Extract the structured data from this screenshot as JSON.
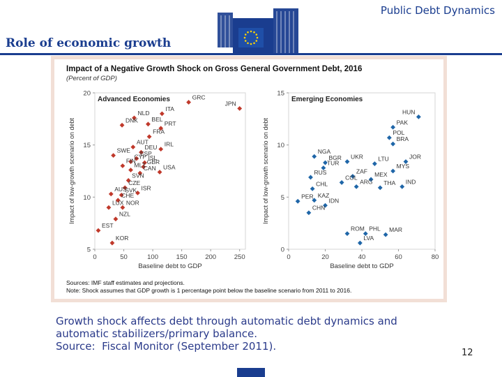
{
  "header": {
    "section_title": "Public Debt Dynamics"
  },
  "slide": {
    "title": "Role of economic growth",
    "page_number": "12"
  },
  "colors": {
    "brand_blue": "#1a3d8f",
    "advanced": "#c0392b",
    "emerging": "#1f66a8",
    "frame": "#f2dfd6"
  },
  "caption": {
    "line1": "Growth shock affects debt through automatic debt dynamics and",
    "line2": "automatic stabilizers/primary balance.",
    "line3": "Source:  Fiscal Monitor (September 2011)."
  },
  "chart_data": [
    {
      "type": "scatter",
      "title": "Impact of a Negative Growth Shock on Gross General Government Debt, 2016",
      "subtitle": "(Percent of GDP)",
      "panel_title": "Advanced Economies",
      "xlabel": "Baseline debt to GDP",
      "ylabel": "Impact of low-growth scenario on debt",
      "xlim": [
        0,
        260
      ],
      "ylim": [
        5,
        20
      ],
      "xticks": [
        "0",
        "50",
        "100",
        "150",
        "200",
        "250"
      ],
      "yticks": [
        "5",
        "10",
        "15",
        "20"
      ],
      "points": [
        {
          "label": "GRC",
          "x": 162,
          "y": 19.1
        },
        {
          "label": "JPN",
          "x": 250,
          "y": 18.5
        },
        {
          "label": "ITA",
          "x": 116,
          "y": 18.0
        },
        {
          "label": "NLD",
          "x": 68,
          "y": 17.6
        },
        {
          "label": "BEL",
          "x": 92,
          "y": 17.0
        },
        {
          "label": "DNK",
          "x": 47,
          "y": 16.9
        },
        {
          "label": "PRT",
          "x": 114,
          "y": 16.6
        },
        {
          "label": "FRA",
          "x": 94,
          "y": 15.8
        },
        {
          "label": "AUT",
          "x": 66,
          "y": 14.8
        },
        {
          "label": "DEU",
          "x": 80,
          "y": 14.3
        },
        {
          "label": "IRL",
          "x": 114,
          "y": 14.6
        },
        {
          "label": "SWE",
          "x": 32,
          "y": 14.0
        },
        {
          "label": "ESP",
          "x": 72,
          "y": 13.7
        },
        {
          "label": "CYP",
          "x": 62,
          "y": 13.4
        },
        {
          "label": "ISL",
          "x": 86,
          "y": 13.3
        },
        {
          "label": "FIN",
          "x": 48,
          "y": 13.0
        },
        {
          "label": "GBR",
          "x": 84,
          "y": 12.9
        },
        {
          "label": "MLT",
          "x": 62,
          "y": 12.6
        },
        {
          "label": "CAN",
          "x": 78,
          "y": 12.3
        },
        {
          "label": "USA",
          "x": 112,
          "y": 12.4
        },
        {
          "label": "SVN",
          "x": 58,
          "y": 11.6
        },
        {
          "label": "CZE",
          "x": 52,
          "y": 10.9
        },
        {
          "label": "ISR",
          "x": 74,
          "y": 10.4
        },
        {
          "label": "AUS",
          "x": 28,
          "y": 10.3
        },
        {
          "label": "SVK",
          "x": 46,
          "y": 10.2
        },
        {
          "label": "CHE",
          "x": 40,
          "y": 9.7
        },
        {
          "label": "LUX",
          "x": 24,
          "y": 9.0
        },
        {
          "label": "NOR",
          "x": 48,
          "y": 9.0
        },
        {
          "label": "NZL",
          "x": 36,
          "y": 7.9
        },
        {
          "label": "EST",
          "x": 6,
          "y": 6.8
        },
        {
          "label": "KOR",
          "x": 30,
          "y": 5.6
        }
      ]
    },
    {
      "type": "scatter",
      "panel_title": "Emerging Economies",
      "xlabel": "Baseline debt to GDP",
      "ylabel": "Impact of low-growth scenario on debt",
      "xlim": [
        0,
        80
      ],
      "ylim": [
        0,
        15
      ],
      "xticks": [
        "0",
        "20",
        "40",
        "60",
        "80"
      ],
      "yticks": [
        "0",
        "5",
        "10",
        "15"
      ],
      "points": [
        {
          "label": "HUN",
          "x": 71,
          "y": 12.7
        },
        {
          "label": "PAK",
          "x": 57,
          "y": 11.7
        },
        {
          "label": "POL",
          "x": 55,
          "y": 10.7
        },
        {
          "label": "BRA",
          "x": 57,
          "y": 10.1
        },
        {
          "label": "NGA",
          "x": 14,
          "y": 8.9
        },
        {
          "label": "BGR",
          "x": 20,
          "y": 8.3
        },
        {
          "label": "UKR",
          "x": 32,
          "y": 8.4
        },
        {
          "label": "LTU",
          "x": 47,
          "y": 8.2
        },
        {
          "label": "JOR",
          "x": 64,
          "y": 8.4
        },
        {
          "label": "TUR",
          "x": 19,
          "y": 7.8
        },
        {
          "label": "ZAF",
          "x": 35,
          "y": 7.0
        },
        {
          "label": "MYS",
          "x": 57,
          "y": 7.5
        },
        {
          "label": "RUS",
          "x": 12,
          "y": 6.9
        },
        {
          "label": "COL",
          "x": 29,
          "y": 6.4
        },
        {
          "label": "MEX",
          "x": 45,
          "y": 6.7
        },
        {
          "label": "ARG",
          "x": 37,
          "y": 6.0
        },
        {
          "label": "IND",
          "x": 62,
          "y": 6.0
        },
        {
          "label": "CHL",
          "x": 13,
          "y": 5.8
        },
        {
          "label": "PER",
          "x": 5,
          "y": 4.6
        },
        {
          "label": "KAZ",
          "x": 14,
          "y": 4.7
        },
        {
          "label": "THA",
          "x": 50,
          "y": 5.9
        },
        {
          "label": "IDN",
          "x": 20,
          "y": 4.2
        },
        {
          "label": "CHN",
          "x": 11,
          "y": 3.5
        },
        {
          "label": "ROM",
          "x": 32,
          "y": 1.5
        },
        {
          "label": "PHL",
          "x": 42,
          "y": 1.5
        },
        {
          "label": "MAR",
          "x": 53,
          "y": 1.4
        },
        {
          "label": "LVA",
          "x": 39,
          "y": 0.6
        }
      ]
    }
  ],
  "notes": {
    "sources": "Sources: IMF staff estimates and projections.",
    "note": "Note: Shock assumes that GDP growth is 1 percentage point below the baseline scenario from 2011 to 2016."
  }
}
